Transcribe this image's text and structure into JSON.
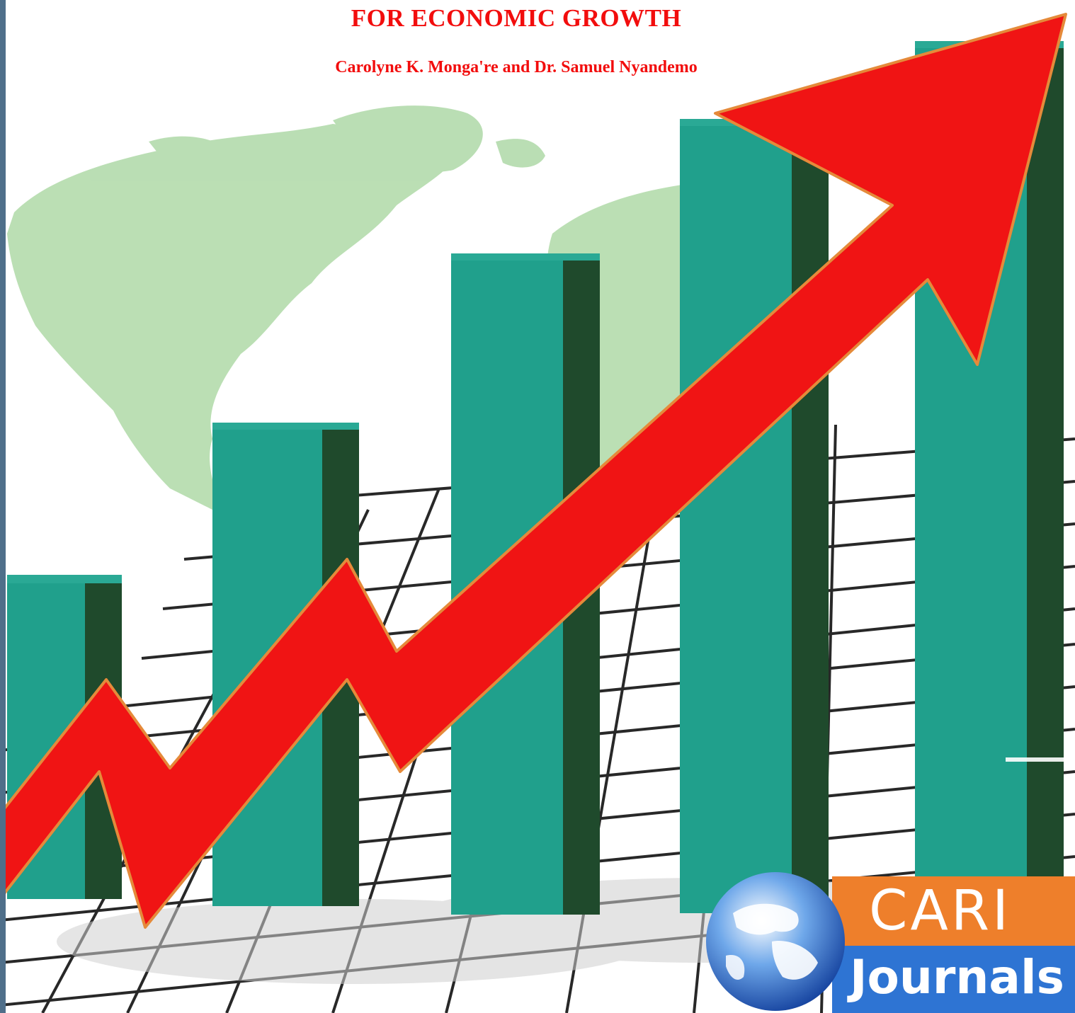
{
  "header": {
    "title": "FOR ECONOMIC GROWTH",
    "authors": "Carolyne K. Monga're and Dr. Samuel Nyandemo"
  },
  "logo": {
    "word_top": "CARI",
    "word_bottom": "Journals"
  },
  "colors": {
    "title_red": "#f20d0d",
    "bar_teal": "#20a08c",
    "bar_dark": "#1f4a2c",
    "map_green": "#b7ddb0",
    "arrow_red": "#f01414",
    "logo_orange": "#ee7f2b",
    "logo_blue": "#2e74d3"
  }
}
